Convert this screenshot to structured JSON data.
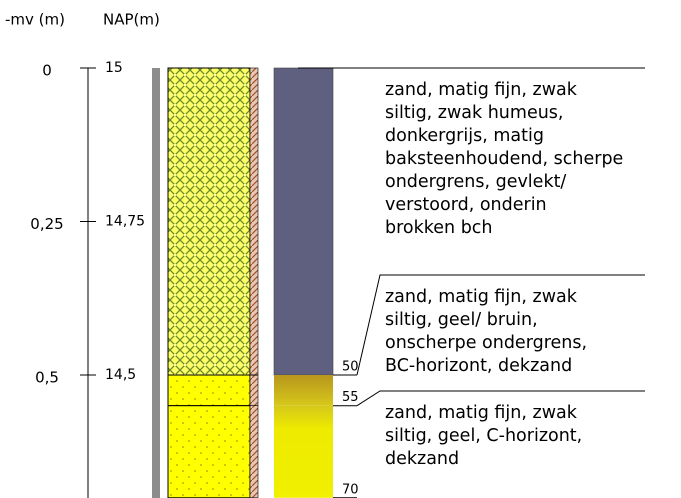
{
  "header": {
    "mv_label": "-mv (m)",
    "nap_label": "NAP(m)"
  },
  "mv_ticks": [
    0,
    {
      "value": 0.25,
      "label": "0,25"
    },
    {
      "value": 0.5,
      "label": "0,5"
    }
  ],
  "nap_ticks": [
    15,
    {
      "value": 14.75,
      "label": "14,75"
    },
    {
      "value": 14.5,
      "label": "14,5"
    }
  ],
  "layers": [
    {
      "bottom": 50,
      "description": [
        "zand, matig fijn, zwak",
        "siltig, zwak humeus,",
        "donkergrijs, matig",
        "baksteenhoudend, scherpe",
        "ondergrens, gevlekt/",
        "verstoord, onderin",
        "brokken bch"
      ]
    },
    {
      "bottom": 55,
      "description": [
        "zand, matig fijn, zwak",
        "siltig, geel/ bruin,",
        "onscherpe ondergrens,",
        "BC-horizont, dekzand"
      ]
    },
    {
      "bottom": 70,
      "description": [
        "zand, matig fijn, zwak",
        "siltig, geel, C-horizont,",
        "dekzand"
      ]
    }
  ]
}
